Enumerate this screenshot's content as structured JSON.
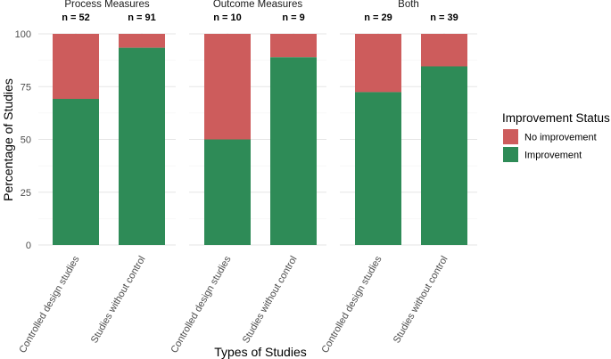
{
  "chart_data": {
    "type": "bar",
    "stacked": true,
    "xlabel": "Types of Studies",
    "ylabel": "Percentage of Studies",
    "ylim": [
      0,
      100
    ],
    "yticks": [
      0,
      25,
      50,
      75,
      100
    ],
    "categories": [
      "Controlled design studies",
      "Studies without control"
    ],
    "legend": {
      "title": "Improvement Status",
      "entries": [
        {
          "label": "No improvement",
          "color": "#cd5c5c"
        },
        {
          "label": "Improvement",
          "color": "#2e8b57"
        }
      ]
    },
    "panels": [
      {
        "title": "Process Measures",
        "bars": [
          {
            "category": "Controlled design studies",
            "n_label": "n = 52",
            "improvement": 69.2,
            "no_improvement": 30.8
          },
          {
            "category": "Studies without control",
            "n_label": "n = 91",
            "improvement": 93.4,
            "no_improvement": 6.6
          }
        ]
      },
      {
        "title": "Outcome Measures",
        "bars": [
          {
            "category": "Controlled design studies",
            "n_label": "n = 10",
            "improvement": 50.0,
            "no_improvement": 50.0
          },
          {
            "category": "Studies without control",
            "n_label": "n = 9",
            "improvement": 88.9,
            "no_improvement": 11.1
          }
        ]
      },
      {
        "title": "Both",
        "bars": [
          {
            "category": "Controlled design studies",
            "n_label": "n = 29",
            "improvement": 72.4,
            "no_improvement": 27.6
          },
          {
            "category": "Studies without control",
            "n_label": "n = 39",
            "improvement": 84.6,
            "no_improvement": 15.4
          }
        ]
      }
    ]
  }
}
